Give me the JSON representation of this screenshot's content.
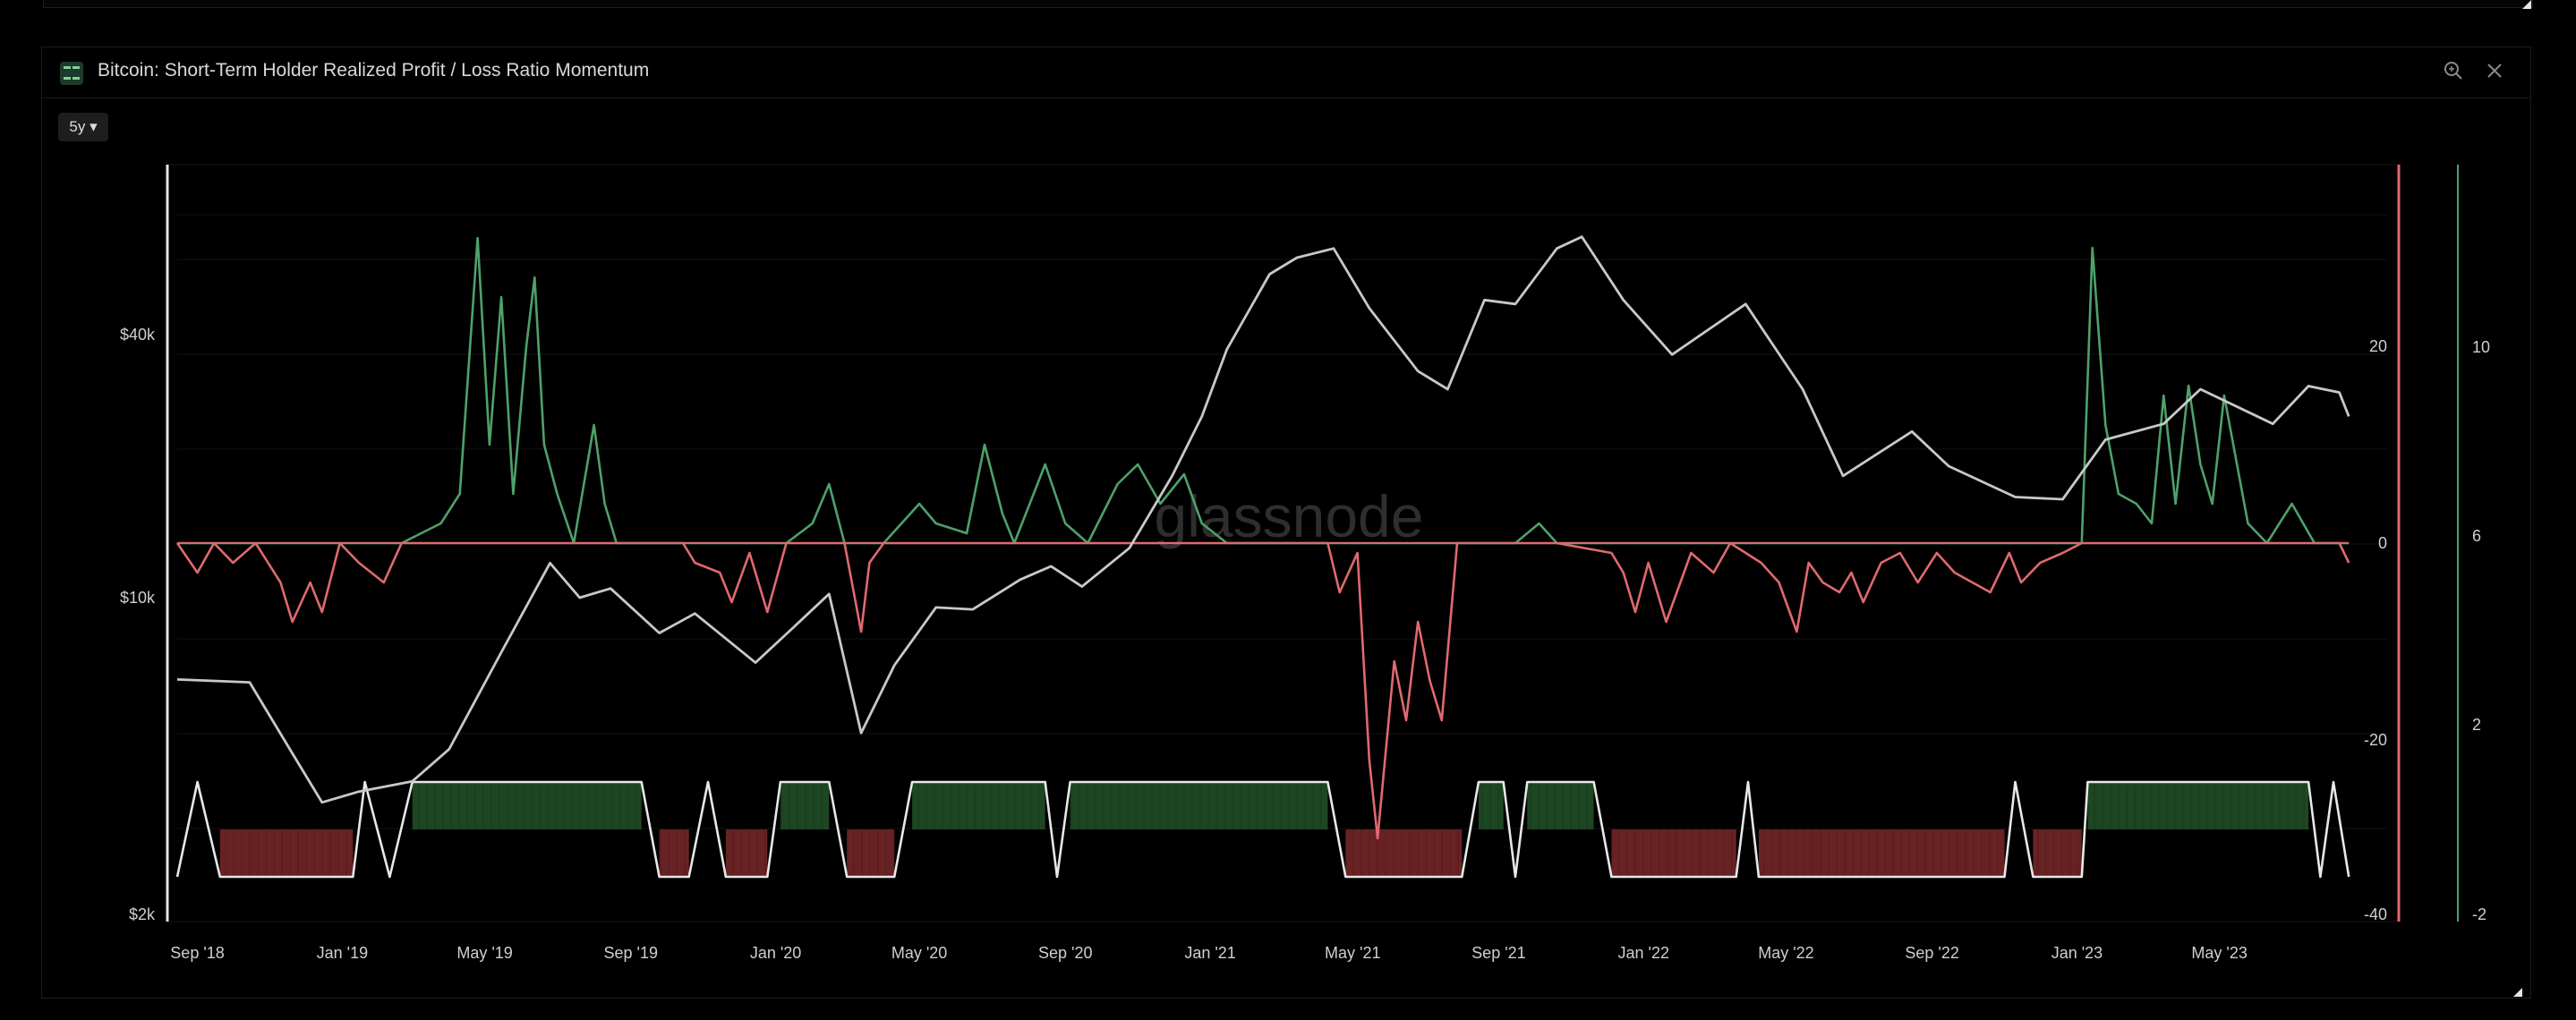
{
  "header": {
    "title": "Bitcoin: Short-Term Holder Realized Profit / Loss Ratio Momentum",
    "range_label": "5y ▾",
    "zoom_icon": "zoom-icon",
    "close_icon": "close-icon"
  },
  "watermark": "glassnode",
  "colors": {
    "price": "#c8c8c8",
    "positive": "#4ea16a",
    "negative": "#e0696f",
    "positive_fill": "#1f4a24",
    "negative_fill": "#6e2426",
    "right_axis_red": "#e0696f",
    "right_axis_green": "#4ea16a"
  },
  "chart_data": {
    "type": "line",
    "x_ticks": [
      "Sep '18",
      "Jan '19",
      "May '19",
      "Sep '19",
      "Jan '20",
      "May '20",
      "Sep '20",
      "Jan '21",
      "May '21",
      "Sep '21",
      "Jan '22",
      "May '22",
      "Sep '22",
      "Jan '23",
      "May '23"
    ],
    "xlim": [
      "2018-08-15",
      "2023-09-20"
    ],
    "left_axis": {
      "scale": "log",
      "ticks": [
        "$2k",
        "$10k",
        "$40k"
      ],
      "tick_values": [
        2000,
        10000,
        40000
      ]
    },
    "right_axis_1": {
      "ticks": [
        "20",
        "0",
        "-20",
        "-40"
      ],
      "tick_values": [
        20,
        0,
        -20,
        -40
      ],
      "ylim": [
        -40,
        40
      ]
    },
    "right_axis_2": {
      "ticks": [
        "10",
        "6",
        "2",
        "-2"
      ],
      "tick_values": [
        10,
        6,
        2,
        -2
      ],
      "ylim": [
        -2,
        14
      ]
    },
    "price": [
      [
        "2018-08-15",
        6500
      ],
      [
        "2018-10-15",
        6400
      ],
      [
        "2018-11-20",
        4400
      ],
      [
        "2018-12-15",
        3400
      ],
      [
        "2019-01-15",
        3600
      ],
      [
        "2019-03-01",
        3800
      ],
      [
        "2019-04-01",
        4500
      ],
      [
        "2019-05-15",
        7500
      ],
      [
        "2019-06-25",
        12000
      ],
      [
        "2019-07-20",
        10000
      ],
      [
        "2019-08-15",
        10500
      ],
      [
        "2019-09-25",
        8300
      ],
      [
        "2019-10-25",
        9200
      ],
      [
        "2019-12-15",
        7100
      ],
      [
        "2020-01-15",
        8500
      ],
      [
        "2020-02-15",
        10200
      ],
      [
        "2020-03-13",
        4900
      ],
      [
        "2020-04-10",
        7000
      ],
      [
        "2020-05-15",
        9500
      ],
      [
        "2020-06-15",
        9400
      ],
      [
        "2020-07-25",
        11000
      ],
      [
        "2020-08-20",
        11800
      ],
      [
        "2020-09-15",
        10600
      ],
      [
        "2020-10-25",
        13000
      ],
      [
        "2020-11-30",
        19000
      ],
      [
        "2020-12-25",
        26000
      ],
      [
        "2021-01-15",
        37000
      ],
      [
        "2021-02-20",
        55000
      ],
      [
        "2021-03-15",
        60000
      ],
      [
        "2021-04-15",
        63000
      ],
      [
        "2021-05-15",
        46000
      ],
      [
        "2021-06-25",
        33000
      ],
      [
        "2021-07-20",
        30000
      ],
      [
        "2021-08-20",
        48000
      ],
      [
        "2021-09-15",
        47000
      ],
      [
        "2021-10-20",
        63000
      ],
      [
        "2021-11-10",
        67000
      ],
      [
        "2021-12-15",
        48000
      ],
      [
        "2022-01-25",
        36000
      ],
      [
        "2022-03-28",
        47000
      ],
      [
        "2022-05-15",
        30000
      ],
      [
        "2022-06-18",
        19000
      ],
      [
        "2022-08-15",
        24000
      ],
      [
        "2022-09-15",
        20000
      ],
      [
        "2022-11-10",
        17000
      ],
      [
        "2022-12-20",
        16800
      ],
      [
        "2023-01-25",
        23000
      ],
      [
        "2023-03-15",
        25000
      ],
      [
        "2023-04-15",
        30000
      ],
      [
        "2023-06-15",
        25000
      ],
      [
        "2023-07-15",
        30500
      ],
      [
        "2023-08-10",
        29500
      ],
      [
        "2023-08-18",
        26000
      ]
    ],
    "momentum_series": [
      [
        "2018-08-15",
        0
      ],
      [
        "2018-09-01",
        -3
      ],
      [
        "2018-09-15",
        0
      ],
      [
        "2018-10-01",
        -2
      ],
      [
        "2018-10-20",
        0
      ],
      [
        "2018-11-10",
        -4
      ],
      [
        "2018-11-20",
        -8
      ],
      [
        "2018-12-05",
        -4
      ],
      [
        "2018-12-15",
        -7
      ],
      [
        "2018-12-30",
        0
      ],
      [
        "2019-01-15",
        -2
      ],
      [
        "2019-02-05",
        -4
      ],
      [
        "2019-02-20",
        0
      ],
      [
        "2019-03-25",
        2
      ],
      [
        "2019-04-10",
        5
      ],
      [
        "2019-04-25",
        31
      ],
      [
        "2019-05-05",
        10
      ],
      [
        "2019-05-15",
        25
      ],
      [
        "2019-05-25",
        5
      ],
      [
        "2019-06-05",
        20
      ],
      [
        "2019-06-12",
        27
      ],
      [
        "2019-06-20",
        10
      ],
      [
        "2019-07-01",
        5
      ],
      [
        "2019-07-15",
        0
      ],
      [
        "2019-08-01",
        12
      ],
      [
        "2019-08-10",
        4
      ],
      [
        "2019-08-20",
        0
      ],
      [
        "2019-10-15",
        0
      ],
      [
        "2019-10-25",
        -2
      ],
      [
        "2019-11-15",
        -3
      ],
      [
        "2019-11-25",
        -6
      ],
      [
        "2019-12-10",
        -1
      ],
      [
        "2019-12-25",
        -7
      ],
      [
        "2020-01-10",
        0
      ],
      [
        "2020-02-01",
        2
      ],
      [
        "2020-02-15",
        6
      ],
      [
        "2020-02-28",
        0
      ],
      [
        "2020-03-13",
        -9
      ],
      [
        "2020-03-20",
        -2
      ],
      [
        "2020-04-01",
        0
      ],
      [
        "2020-05-01",
        4
      ],
      [
        "2020-05-15",
        2
      ],
      [
        "2020-06-10",
        1
      ],
      [
        "2020-06-25",
        10
      ],
      [
        "2020-07-10",
        3
      ],
      [
        "2020-07-20",
        0
      ],
      [
        "2020-08-15",
        8
      ],
      [
        "2020-09-01",
        2
      ],
      [
        "2020-09-20",
        0
      ],
      [
        "2020-10-15",
        6
      ],
      [
        "2020-11-01",
        8
      ],
      [
        "2020-11-20",
        4
      ],
      [
        "2020-12-10",
        7
      ],
      [
        "2020-12-25",
        2
      ],
      [
        "2021-01-15",
        0
      ],
      [
        "2021-03-01",
        0
      ],
      [
        "2021-04-10",
        0
      ],
      [
        "2021-04-20",
        -5
      ],
      [
        "2021-05-05",
        -1
      ],
      [
        "2021-05-15",
        -22
      ],
      [
        "2021-05-22",
        -30
      ],
      [
        "2021-06-05",
        -12
      ],
      [
        "2021-06-15",
        -18
      ],
      [
        "2021-06-25",
        -8
      ],
      [
        "2021-07-05",
        -14
      ],
      [
        "2021-07-15",
        -18
      ],
      [
        "2021-07-28",
        0
      ],
      [
        "2021-09-15",
        0
      ],
      [
        "2021-10-05",
        2
      ],
      [
        "2021-10-20",
        0
      ],
      [
        "2021-12-05",
        -1
      ],
      [
        "2021-12-15",
        -3
      ],
      [
        "2021-12-25",
        -7
      ],
      [
        "2022-01-05",
        -2
      ],
      [
        "2022-01-20",
        -8
      ],
      [
        "2022-02-10",
        -1
      ],
      [
        "2022-03-01",
        -3
      ],
      [
        "2022-03-15",
        0
      ],
      [
        "2022-04-10",
        -2
      ],
      [
        "2022-04-25",
        -4
      ],
      [
        "2022-05-10",
        -9
      ],
      [
        "2022-05-20",
        -2
      ],
      [
        "2022-06-01",
        -4
      ],
      [
        "2022-06-15",
        -5
      ],
      [
        "2022-06-25",
        -3
      ],
      [
        "2022-07-05",
        -6
      ],
      [
        "2022-07-20",
        -2
      ],
      [
        "2022-08-05",
        -1
      ],
      [
        "2022-08-20",
        -4
      ],
      [
        "2022-09-05",
        -1
      ],
      [
        "2022-09-20",
        -3
      ],
      [
        "2022-10-05",
        -4
      ],
      [
        "2022-10-20",
        -5
      ],
      [
        "2022-11-05",
        -1
      ],
      [
        "2022-11-15",
        -4
      ],
      [
        "2022-12-01",
        -2
      ],
      [
        "2022-12-20",
        -1
      ],
      [
        "2023-01-05",
        0
      ],
      [
        "2023-01-14",
        30
      ],
      [
        "2023-01-25",
        12
      ],
      [
        "2023-02-05",
        5
      ],
      [
        "2023-02-20",
        4
      ],
      [
        "2023-03-05",
        2
      ],
      [
        "2023-03-15",
        15
      ],
      [
        "2023-03-25",
        4
      ],
      [
        "2023-04-05",
        16
      ],
      [
        "2023-04-15",
        8
      ],
      [
        "2023-04-25",
        4
      ],
      [
        "2023-05-05",
        15
      ],
      [
        "2023-05-25",
        2
      ],
      [
        "2023-06-10",
        0
      ],
      [
        "2023-07-01",
        4
      ],
      [
        "2023-07-20",
        0
      ],
      [
        "2023-08-10",
        0
      ],
      [
        "2023-08-18",
        -2
      ]
    ],
    "sign_regime": [
      [
        "2018-08-15",
        -1
      ],
      [
        "2018-09-01",
        1
      ],
      [
        "2018-09-20",
        -1
      ],
      [
        "2019-01-10",
        -1
      ],
      [
        "2019-01-20",
        1
      ],
      [
        "2019-02-10",
        -1
      ],
      [
        "2019-03-01",
        1
      ],
      [
        "2019-09-10",
        1
      ],
      [
        "2019-09-25",
        -1
      ],
      [
        "2019-10-20",
        -1
      ],
      [
        "2019-11-05",
        1
      ],
      [
        "2019-11-20",
        -1
      ],
      [
        "2019-12-25",
        -1
      ],
      [
        "2020-01-05",
        1
      ],
      [
        "2020-02-15",
        1
      ],
      [
        "2020-03-01",
        -1
      ],
      [
        "2020-04-10",
        -1
      ],
      [
        "2020-04-25",
        1
      ],
      [
        "2020-08-15",
        1
      ],
      [
        "2020-08-25",
        -1
      ],
      [
        "2020-09-05",
        1
      ],
      [
        "2021-04-10",
        1
      ],
      [
        "2021-04-25",
        -1
      ],
      [
        "2021-08-01",
        -1
      ],
      [
        "2021-08-15",
        1
      ],
      [
        "2021-09-05",
        1
      ],
      [
        "2021-09-15",
        -1
      ],
      [
        "2021-09-25",
        1
      ],
      [
        "2021-11-20",
        1
      ],
      [
        "2021-12-05",
        -1
      ],
      [
        "2022-03-20",
        -1
      ],
      [
        "2022-03-30",
        1
      ],
      [
        "2022-04-08",
        -1
      ],
      [
        "2022-11-01",
        -1
      ],
      [
        "2022-11-10",
        1
      ],
      [
        "2022-11-25",
        -1
      ],
      [
        "2023-01-05",
        -1
      ],
      [
        "2023-01-10",
        1
      ],
      [
        "2023-07-15",
        1
      ],
      [
        "2023-07-25",
        -1
      ],
      [
        "2023-08-05",
        1
      ],
      [
        "2023-08-18",
        -1
      ]
    ]
  }
}
